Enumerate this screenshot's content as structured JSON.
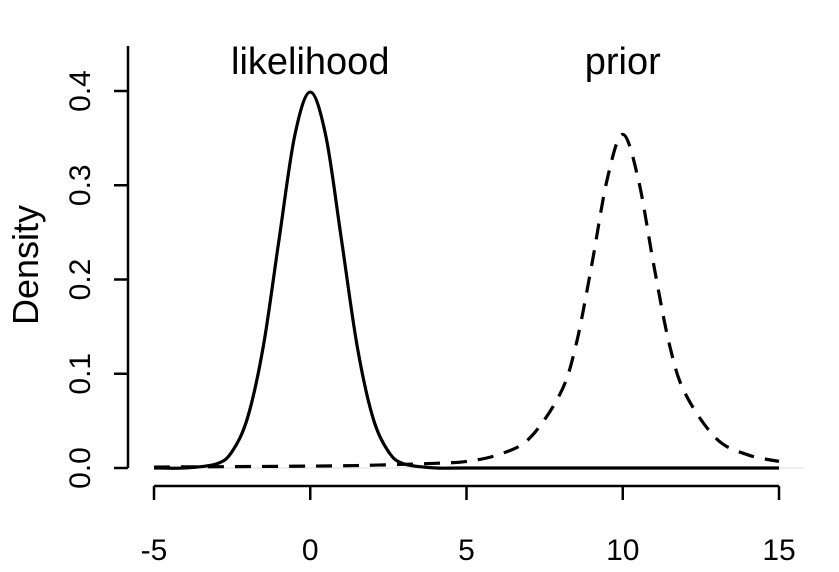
{
  "chart_data": {
    "type": "line",
    "title": "",
    "xlabel": "",
    "ylabel": "Density",
    "xlim": [
      -5,
      15
    ],
    "ylim": [
      0,
      0.4
    ],
    "x_ticks": [
      -5,
      0,
      5,
      10,
      15
    ],
    "x_tick_labels": [
      "-5",
      "0",
      "5",
      "10",
      "15"
    ],
    "y_ticks": [
      0,
      0.1,
      0.2,
      0.3,
      0.4
    ],
    "y_tick_labels": [
      "0.0",
      "0.1",
      "0.2",
      "0.3",
      "0.4"
    ],
    "grid": false,
    "legend": "none",
    "series": [
      {
        "style": "solid",
        "x": [
          -5,
          -4,
          -3,
          -2.5,
          -2,
          -1.5,
          -1,
          -0.5,
          0,
          0.5,
          1,
          1.5,
          2,
          2.5,
          3,
          4,
          5,
          10,
          15
        ],
        "y": [
          0.0,
          0.0001,
          0.0044,
          0.0175,
          0.054,
          0.1295,
          0.242,
          0.3521,
          0.3989,
          0.3521,
          0.242,
          0.1295,
          0.054,
          0.0175,
          0.0044,
          0.0001,
          0.0,
          0.0,
          0.0
        ]
      },
      {
        "style": "dashed",
        "x": [
          -5,
          0,
          2,
          4,
          5,
          6,
          7,
          8,
          8.5,
          9,
          9.5,
          10,
          10.5,
          11,
          11.5,
          12,
          13,
          14,
          15
        ],
        "y": [
          0.001,
          0.002,
          0.003,
          0.005,
          0.007,
          0.014,
          0.031,
          0.079,
          0.13,
          0.214,
          0.306,
          0.354,
          0.306,
          0.214,
          0.13,
          0.079,
          0.031,
          0.014,
          0.007
        ]
      }
    ],
    "annotations": [
      {
        "text": "likelihood",
        "x": 0,
        "y": 0.42
      },
      {
        "text": "prior",
        "x": 10,
        "y": 0.42
      }
    ]
  }
}
